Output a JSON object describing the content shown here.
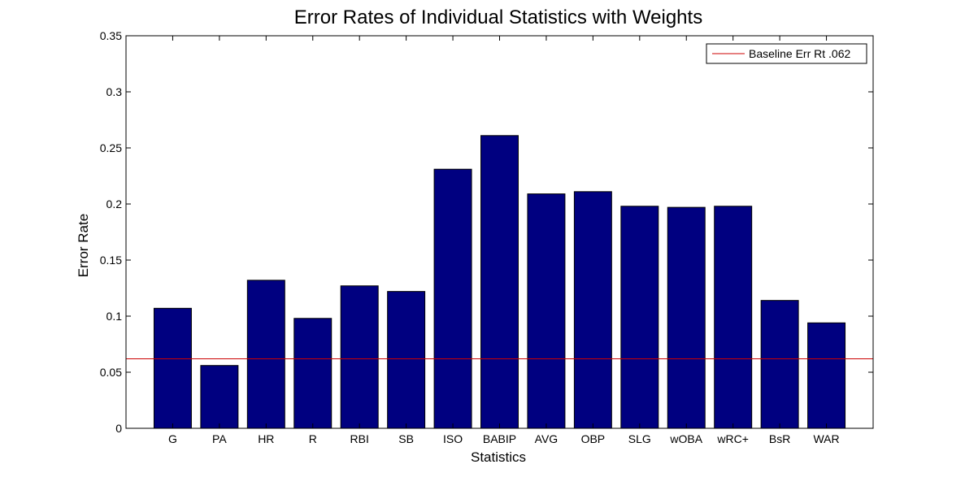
{
  "chart_data": {
    "type": "bar",
    "title": "Error Rates of Individual Statistics with Weights",
    "xlabel": "Statistics",
    "ylabel": "Error Rate",
    "categories": [
      "G",
      "PA",
      "HR",
      "R",
      "RBI",
      "SB",
      "ISO",
      "BABIP",
      "AVG",
      "OBP",
      "SLG",
      "wOBA",
      "wRC+",
      "BsR",
      "WAR"
    ],
    "values": [
      0.107,
      0.056,
      0.132,
      0.098,
      0.127,
      0.122,
      0.231,
      0.261,
      0.209,
      0.211,
      0.198,
      0.197,
      0.198,
      0.114,
      0.094
    ],
    "ylim": [
      0,
      0.35
    ],
    "yticks": [
      0,
      0.05,
      0.1,
      0.15,
      0.2,
      0.25,
      0.3,
      0.35
    ],
    "ytick_labels": [
      "0",
      "0.05",
      "0.1",
      "0.15",
      "0.2",
      "0.25",
      "0.3",
      "0.35"
    ],
    "baseline": {
      "label": "Baseline Err Rt .062",
      "value": 0.062,
      "color": "#cc0000"
    },
    "bar_color": "#000080",
    "legend_position": "top-right",
    "grid": false
  }
}
